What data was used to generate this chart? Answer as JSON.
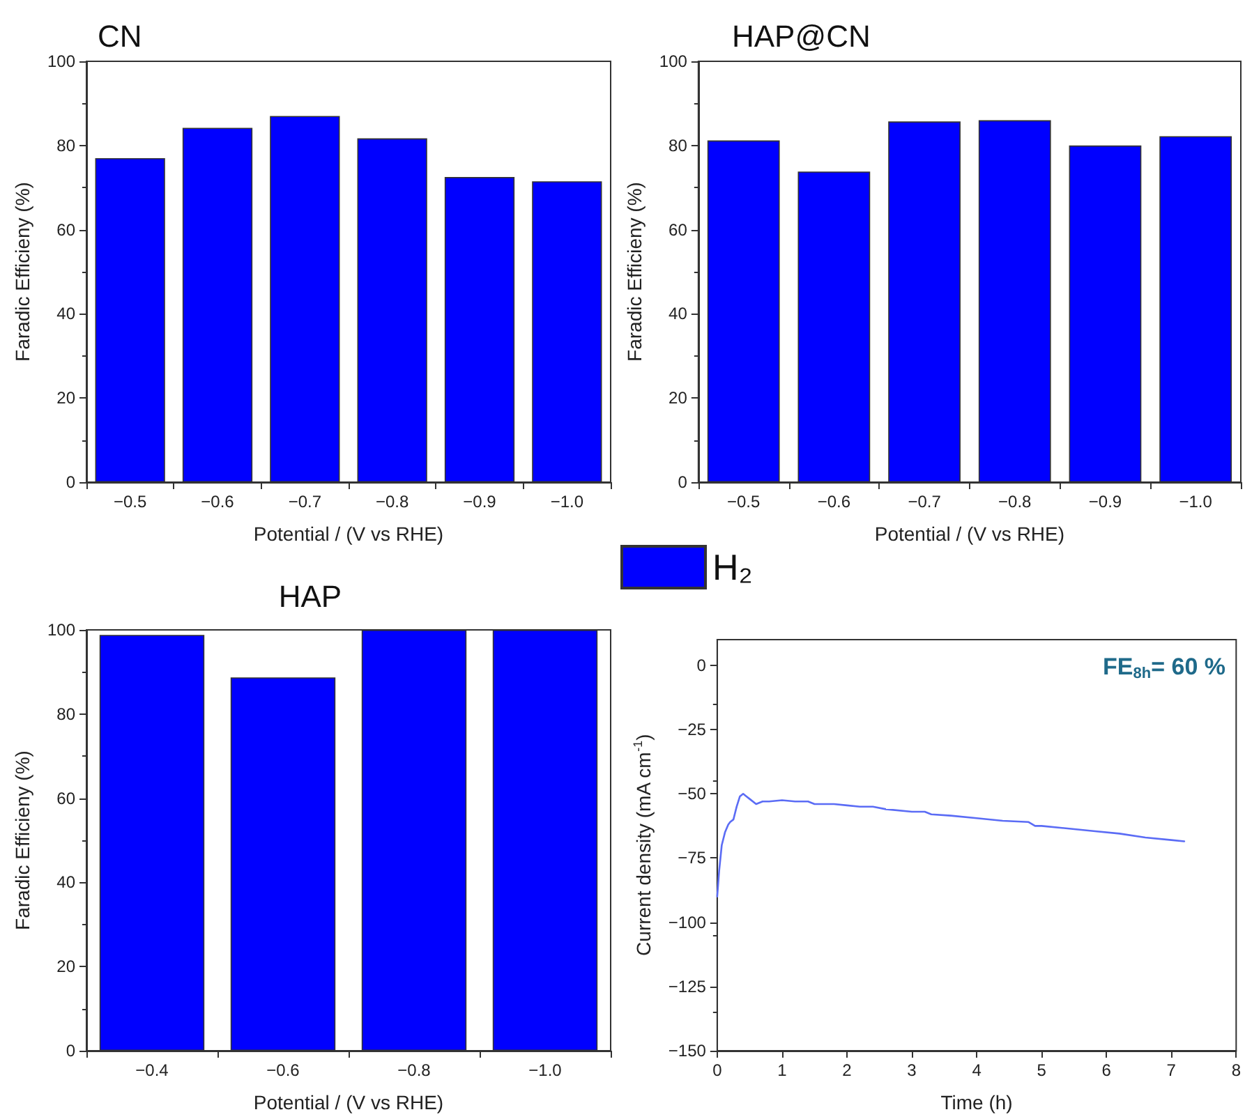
{
  "chart_data": [
    {
      "type": "bar",
      "title": "CN",
      "xlabel": "Potential / (V vs RHE)",
      "ylabel": "Faradic Efficieny (%)",
      "categories": [
        "−0.5",
        "−0.6",
        "−0.7",
        "−0.8",
        "−0.9",
        "−1.0"
      ],
      "series": [
        {
          "color": "#0000ff",
          "values": [
            77,
            84.2,
            87,
            81.7,
            72.5,
            71.5
          ]
        }
      ],
      "ylim": [
        0,
        100
      ],
      "yticks": [
        0,
        20,
        40,
        60,
        80,
        100
      ],
      "grid": false
    },
    {
      "type": "bar",
      "title": "HAP@CN",
      "xlabel": "Potential / (V vs RHE)",
      "ylabel": "Faradic Efficieny (%)",
      "categories": [
        "−0.5",
        "−0.6",
        "−0.7",
        "−0.8",
        "−0.9",
        "−1.0"
      ],
      "series": [
        {
          "name": "H₂",
          "color": "#0000ff",
          "values": [
            81.2,
            73.8,
            85.7,
            86,
            80,
            82.2
          ]
        }
      ],
      "ylim": [
        0,
        100
      ],
      "yticks": [
        0,
        20,
        40,
        60,
        80,
        100
      ],
      "grid": false,
      "legend": "bottom left"
    },
    {
      "type": "bar",
      "title": "HAP",
      "xlabel": "Potential / (V vs RHE)",
      "ylabel": "Faradic Efficieny (%)",
      "categories": [
        "−0.4",
        "−0.6",
        "−0.8",
        "−1.0"
      ],
      "series": [
        {
          "color": "#0000ff",
          "values": [
            98.8,
            88.7,
            100,
            100
          ]
        }
      ],
      "ylim": [
        0,
        100
      ],
      "yticks": [
        0,
        20,
        40,
        60,
        80,
        100
      ],
      "grid": false
    },
    {
      "type": "line",
      "xlabel": "Time (h)",
      "ylabel": "Current density (mA cm$^{-1}$)",
      "annotations": [
        "FE$_{8h}$= 60 %"
      ],
      "series": [
        {
          "color": "#5b6cf5",
          "x": [
            0,
            0.03,
            0.07,
            0.12,
            0.17,
            0.2,
            0.25,
            0.3,
            0.35,
            0.4,
            0.45,
            0.5,
            0.6,
            0.7,
            0.8,
            1,
            1.2,
            1.4,
            1.5,
            1.8,
            2,
            2.2,
            2.4,
            2.6,
            3,
            3.2,
            3.3,
            3.6,
            4,
            4.4,
            4.8,
            4.9,
            5,
            5.4,
            5.8,
            6.2,
            6.6,
            7,
            7.2
          ],
          "values": [
            -90,
            -80,
            -70,
            -65,
            -62,
            -61,
            -60,
            -55,
            -51,
            -50,
            -51,
            -52,
            -54,
            -53,
            -53,
            -52.5,
            -53,
            -53,
            -54,
            -54,
            -54.5,
            -55,
            -55,
            -56,
            -57,
            -57,
            -58,
            -58.5,
            -59.5,
            -60.5,
            -61,
            -62.5,
            -62.5,
            -63.5,
            -64.5,
            -65.5,
            -67,
            -68,
            -68.5
          ]
        }
      ],
      "xlim": [
        0,
        8
      ],
      "xticks": [
        0,
        1,
        2,
        3,
        4,
        5,
        6,
        7,
        8
      ],
      "ylim": [
        -150,
        10
      ],
      "yticks": [
        0,
        -25,
        -50,
        -75,
        -100,
        -125,
        -150
      ],
      "grid": false,
      "marker": "none",
      "line_style": "solid"
    }
  ]
}
